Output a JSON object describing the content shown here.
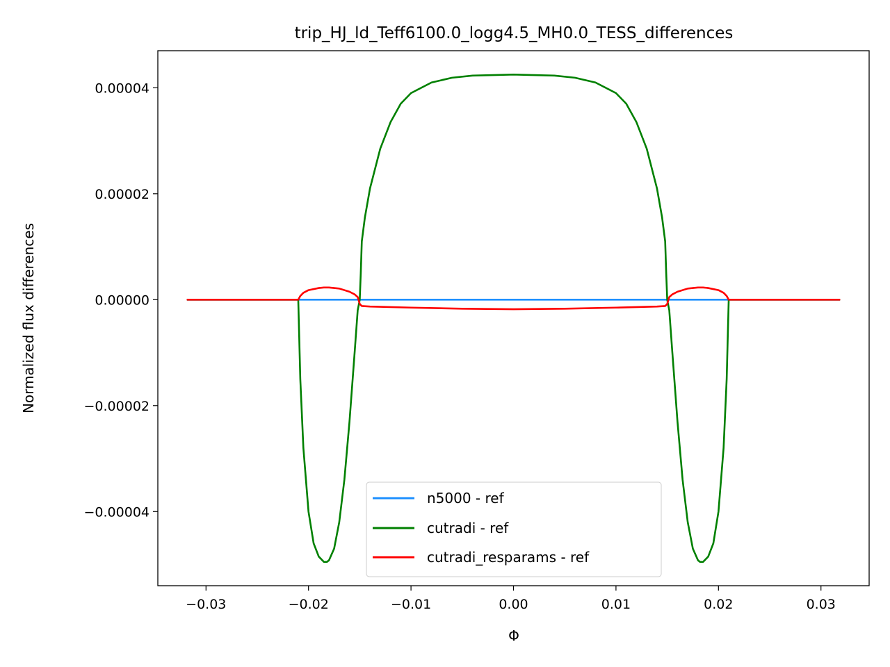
{
  "chart_data": {
    "type": "line",
    "title": "trip_HJ_ld_Teff6100.0_logg4.5_MH0.0_TESS_differences",
    "xlabel": "Φ",
    "ylabel": "Normalized flux differences",
    "xlim": [
      -0.0347,
      0.0347
    ],
    "ylim": [
      -5.4e-05,
      4.7e-05
    ],
    "x_ticks": [
      -0.03,
      -0.02,
      -0.01,
      0.0,
      0.01,
      0.02,
      0.03
    ],
    "x_tick_labels": [
      "−0.03",
      "−0.02",
      "−0.01",
      "0.00",
      "0.01",
      "0.02",
      "0.03"
    ],
    "y_ticks": [
      -4e-05,
      -2e-05,
      0.0,
      2e-05,
      4e-05
    ],
    "y_tick_labels": [
      "−0.00004",
      "−0.00002",
      "0.00000",
      "0.00002",
      "0.00004"
    ],
    "grid": false,
    "legend_position": "lower-center",
    "series": [
      {
        "name": "n5000 - ref",
        "color": "#1e90ff",
        "x": [
          -0.0318,
          -0.021,
          -0.015,
          -0.01,
          0.0,
          0.01,
          0.015,
          0.021,
          0.0318
        ],
        "y": [
          0,
          0,
          0,
          0,
          0,
          0,
          0,
          0,
          0
        ]
      },
      {
        "name": "cutradi - ref",
        "color": "#008000",
        "x": [
          -0.0318,
          -0.021,
          -0.0208,
          -0.0205,
          -0.02,
          -0.0195,
          -0.019,
          -0.0185,
          -0.0182,
          -0.018,
          -0.0175,
          -0.017,
          -0.0165,
          -0.016,
          -0.0155,
          -0.0152,
          -0.015,
          -0.0149,
          -0.0148,
          -0.0145,
          -0.014,
          -0.013,
          -0.012,
          -0.011,
          -0.01,
          -0.008,
          -0.006,
          -0.004,
          -0.002,
          0.0,
          0.002,
          0.004,
          0.006,
          0.008,
          0.01,
          0.011,
          0.012,
          0.013,
          0.014,
          0.0145,
          0.0148,
          0.0149,
          0.015,
          0.0152,
          0.0155,
          0.016,
          0.0165,
          0.017,
          0.0175,
          0.018,
          0.0182,
          0.0185,
          0.019,
          0.0195,
          0.02,
          0.0205,
          0.0208,
          0.021,
          0.0318
        ],
        "y": [
          0,
          0,
          -1.5e-05,
          -2.8e-05,
          -4e-05,
          -4.6e-05,
          -4.85e-05,
          -4.95e-05,
          -4.95e-05,
          -4.92e-05,
          -4.7e-05,
          -4.2e-05,
          -3.4e-05,
          -2.3e-05,
          -1e-05,
          -2e-06,
          0.0,
          5e-06,
          1.1e-05,
          1.55e-05,
          2.1e-05,
          2.85e-05,
          3.35e-05,
          3.7e-05,
          3.9e-05,
          4.1e-05,
          4.19e-05,
          4.23e-05,
          4.24e-05,
          4.25e-05,
          4.24e-05,
          4.23e-05,
          4.19e-05,
          4.1e-05,
          3.9e-05,
          3.7e-05,
          3.35e-05,
          2.85e-05,
          2.1e-05,
          1.55e-05,
          1.1e-05,
          5e-06,
          0.0,
          -2e-06,
          -1e-05,
          -2.3e-05,
          -3.4e-05,
          -4.2e-05,
          -4.7e-05,
          -4.92e-05,
          -4.95e-05,
          -4.95e-05,
          -4.85e-05,
          -4.6e-05,
          -4e-05,
          -2.8e-05,
          -1.5e-05,
          0,
          0
        ]
      },
      {
        "name": "cutradi_resparams - ref",
        "color": "#ff0000",
        "x": [
          -0.0318,
          -0.021,
          -0.0208,
          -0.0205,
          -0.02,
          -0.019,
          -0.0185,
          -0.018,
          -0.017,
          -0.016,
          -0.0155,
          -0.0152,
          -0.015,
          -0.0148,
          -0.014,
          -0.01,
          -0.005,
          0.0,
          0.005,
          0.01,
          0.014,
          0.0148,
          0.015,
          0.0152,
          0.0155,
          0.016,
          0.017,
          0.018,
          0.0185,
          0.019,
          0.02,
          0.0205,
          0.0208,
          0.021,
          0.0318
        ],
        "y": [
          0,
          0,
          7e-07,
          1.3e-06,
          1.8e-06,
          2.2e-06,
          2.3e-06,
          2.3e-06,
          2.1e-06,
          1.5e-06,
          1e-06,
          5e-07,
          -8e-07,
          -1.2e-06,
          -1.3e-06,
          -1.5e-06,
          -1.7e-06,
          -1.8e-06,
          -1.7e-06,
          -1.5e-06,
          -1.3e-06,
          -1.2e-06,
          -8e-07,
          5e-07,
          1e-06,
          1.5e-06,
          2.1e-06,
          2.3e-06,
          2.3e-06,
          2.2e-06,
          1.8e-06,
          1.3e-06,
          7e-07,
          0,
          0
        ]
      }
    ]
  }
}
